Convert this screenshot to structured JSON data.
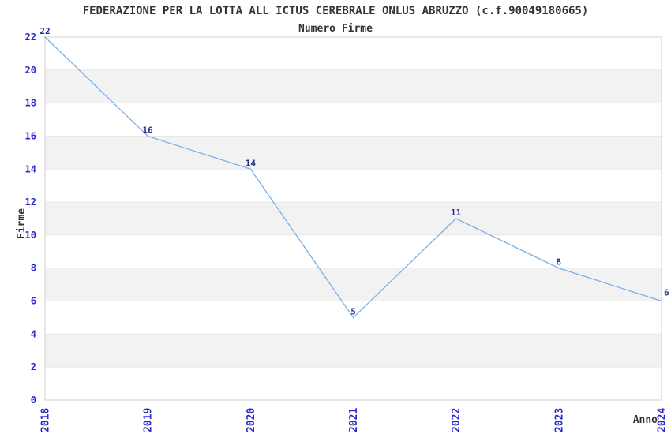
{
  "title": "FEDERAZIONE PER LA LOTTA ALL ICTUS CEREBRALE ONLUS ABRUZZO (c.f.90049180665)",
  "subtitle": "Numero Firme",
  "chart_data": {
    "type": "line",
    "x": [
      "2018",
      "2019",
      "2020",
      "2021",
      "2022",
      "2023",
      "2024"
    ],
    "series": [
      {
        "name": "Numero Firme",
        "values": [
          22,
          16,
          14,
          5,
          11,
          8,
          6
        ]
      }
    ],
    "data_labels": [
      "22",
      "16",
      "14",
      "5",
      "11",
      "8",
      "6"
    ],
    "title": "FEDERAZIONE PER LA LOTTA ALL ICTUS CEREBRALE ONLUS ABRUZZO (c.f.90049180665)",
    "subtitle": "Numero Firme",
    "xlabel": "Anno",
    "ylabel": "Firme",
    "ylim": [
      0,
      22
    ],
    "ytick_step": 2,
    "yticks": [
      0,
      2,
      4,
      6,
      8,
      10,
      12,
      14,
      16,
      18,
      20,
      22
    ],
    "grid": true,
    "band_fill": true,
    "legend_position": "none"
  },
  "colors": {
    "line": "#7cafe8",
    "data_label": "#2d2d8f",
    "tick_label": "#2a2acc",
    "text": "#333333",
    "band": "#f2f2f2",
    "gridline": "#e8e8e8",
    "border": "#d2d2d2",
    "background": "#ffffff"
  }
}
